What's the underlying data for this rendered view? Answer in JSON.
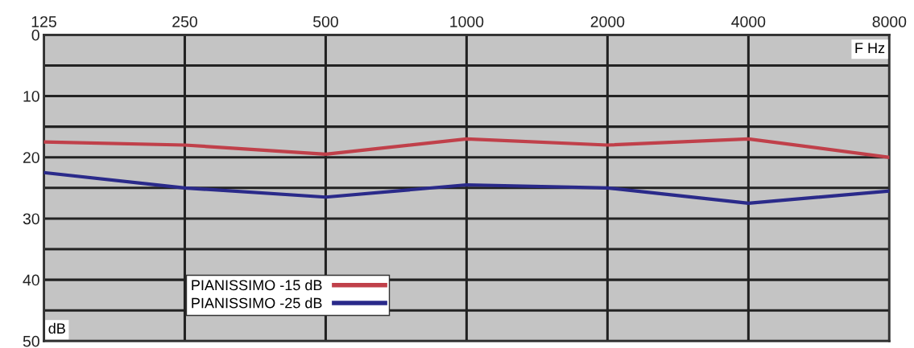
{
  "chart_data": {
    "type": "line",
    "xlabel": "F Hz",
    "ylabel": "dB",
    "log": "x",
    "xlim": [
      125,
      8000
    ],
    "xticks": [
      125,
      250,
      500,
      1000,
      2000,
      4000,
      8000
    ],
    "ylim": [
      50,
      0
    ],
    "yticks": [
      0,
      {
        "value": 5,
        "label": null
      },
      10,
      {
        "value": 15,
        "label": null
      },
      20,
      {
        "value": 25,
        "label": null
      },
      30,
      {
        "value": 35,
        "label": null
      },
      40,
      {
        "value": 45,
        "label": null
      },
      50
    ],
    "grid": true,
    "legend": "bottom left",
    "marker": "none",
    "line_style": "solid",
    "series": [
      {
        "name": "PIANISSIMO -15 dB",
        "color": "#c0404a",
        "x": [
          125,
          250,
          500,
          1000,
          2000,
          4000,
          8000
        ],
        "values": [
          17.5,
          18,
          19.5,
          17,
          18,
          17,
          20
        ]
      },
      {
        "name": "PIANISSIMO -25 dB",
        "color": "#2a2a8a",
        "x": [
          125,
          250,
          500,
          1000,
          2000,
          4000,
          8000
        ],
        "values": [
          22.5,
          25,
          26.5,
          24.5,
          25,
          27.5,
          25.5
        ]
      }
    ]
  }
}
